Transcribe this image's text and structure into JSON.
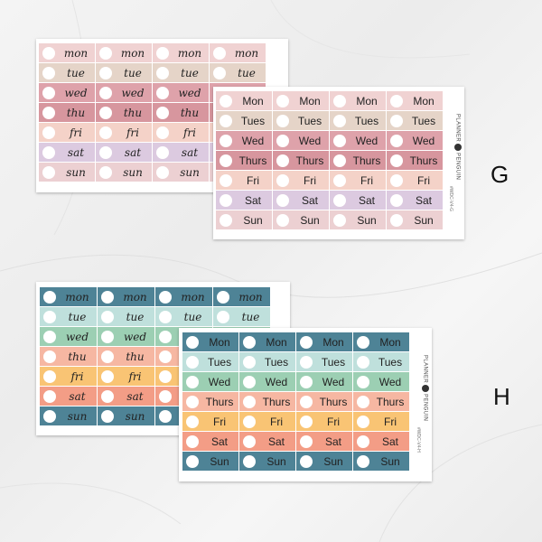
{
  "brand": {
    "line1": "PLANNER",
    "line2": "PENGUIN",
    "logo_icon": "penguin-icon"
  },
  "variants": [
    {
      "letter": "G",
      "code": "#WDC-V4-G",
      "script_days": [
        "mon",
        "tue",
        "wed",
        "thu",
        "fri",
        "sat",
        "sun"
      ],
      "print_days": [
        "Mon",
        "Tues",
        "Wed",
        "Thurs",
        "Fri",
        "Sat",
        "Sun"
      ],
      "row_colors": [
        "#f0d2d2",
        "#e5d4c8",
        "#dea2aa",
        "#d7969e",
        "#f4d2c8",
        "#dccae0",
        "#ecd0d2"
      ]
    },
    {
      "letter": "H",
      "code": "#WDC-V4-H",
      "script_days": [
        "mon",
        "tue",
        "wed",
        "thu",
        "fri",
        "sat",
        "sun"
      ],
      "print_days": [
        "Mon",
        "Tues",
        "Wed",
        "Thurs",
        "Fri",
        "Sat",
        "Sun"
      ],
      "row_colors": [
        "#4e8396",
        "#bfe0dc",
        "#9ccfb3",
        "#f6b7a2",
        "#f9c474",
        "#f39d86",
        "#4e8396"
      ]
    }
  ]
}
